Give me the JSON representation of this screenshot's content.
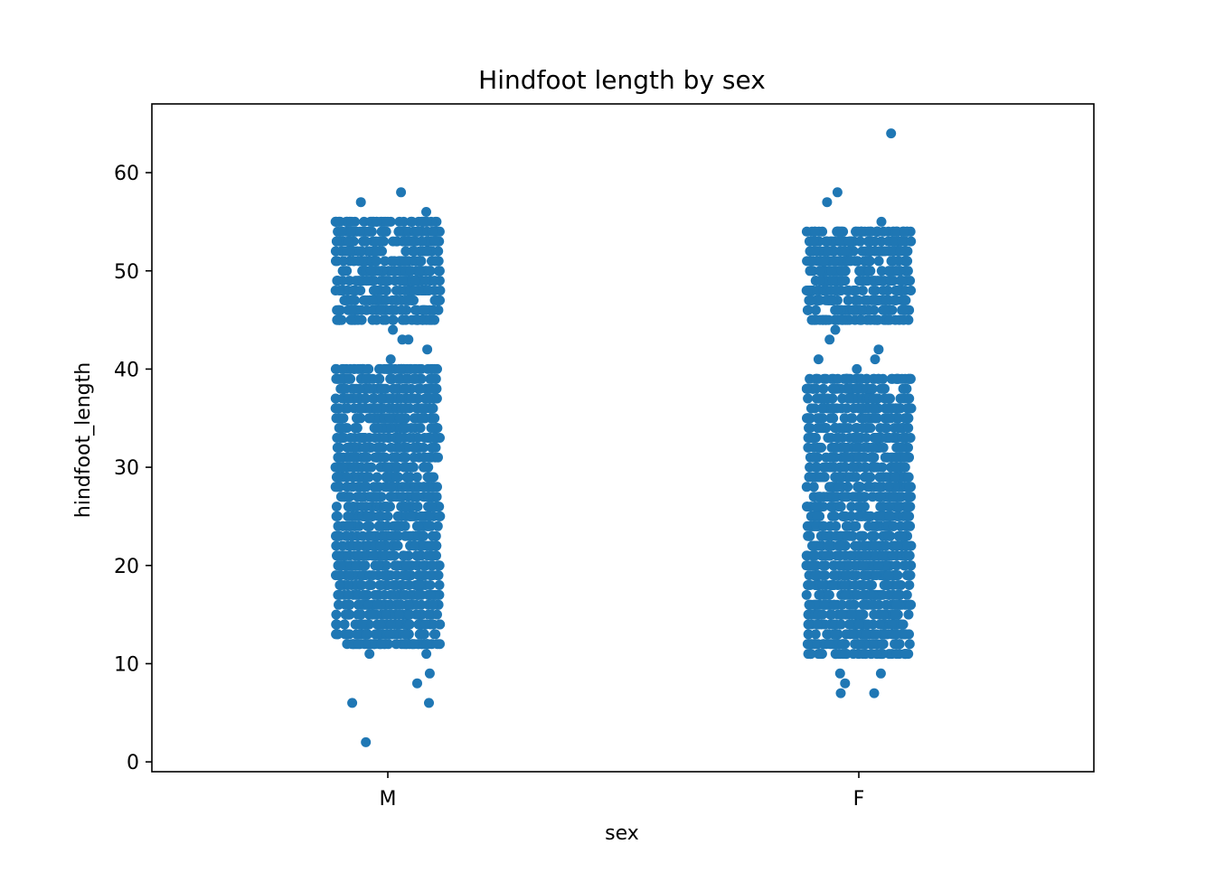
{
  "chart_data": {
    "type": "scatter",
    "subtype": "strip",
    "title": "Hindfoot length by sex",
    "xlabel": "sex",
    "ylabel": "hindfoot_length",
    "categories": [
      "M",
      "F"
    ],
    "ylim": [
      -1,
      67
    ],
    "yticks": [
      0,
      10,
      20,
      30,
      40,
      50,
      60
    ],
    "ytick_labels": [
      "0",
      "10",
      "20",
      "30",
      "40",
      "50",
      "60"
    ],
    "grid": false,
    "legend": "none",
    "color": "#1f77b4",
    "series": [
      {
        "category": "M",
        "dense_bands": [
          [
            12,
            40
          ],
          [
            45,
            55
          ]
        ],
        "outliers": [
          58,
          56,
          57,
          43,
          43,
          44,
          42,
          41,
          11,
          11,
          9,
          8,
          6,
          6,
          2
        ]
      },
      {
        "category": "F",
        "dense_bands": [
          [
            11,
            39
          ],
          [
            45,
            54
          ]
        ],
        "outliers": [
          64,
          58,
          57,
          55,
          44,
          43,
          42,
          41,
          41,
          40,
          9,
          9,
          8,
          7,
          7
        ]
      }
    ]
  }
}
